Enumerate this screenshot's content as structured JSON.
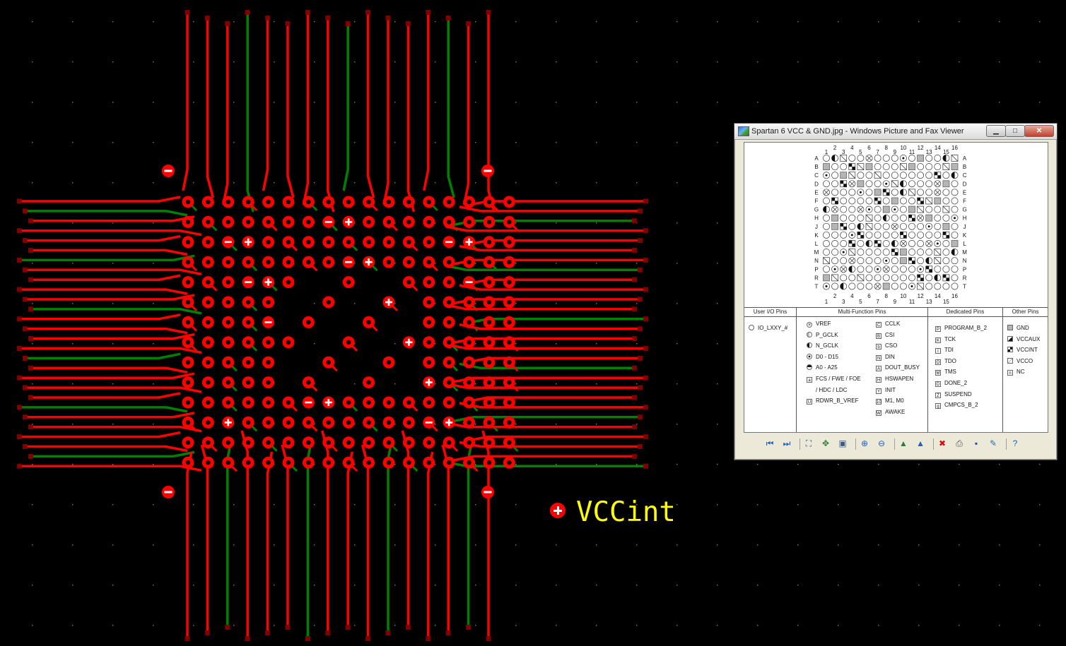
{
  "canvas": {
    "background": "#000000",
    "trace_red": "#ff0000",
    "trace_green": "#008000",
    "pad_dark": "#800000"
  },
  "net_label": {
    "text": "VCCint",
    "color": "#ffff00"
  },
  "viewer": {
    "title": "Spartan 6 VCC & GND.jpg - Windows Picture and Fax Viewer",
    "buttons": {
      "minimize": "▁",
      "maximize": "□",
      "close": "✕"
    },
    "pinout": {
      "cols_top_odd": [
        "1",
        "3",
        "5",
        "7",
        "9",
        "11",
        "13",
        "15"
      ],
      "cols_top_even": [
        "2",
        "4",
        "6",
        "8",
        "10",
        "12",
        "14",
        "16"
      ],
      "rows": [
        "A",
        "B",
        "C",
        "D",
        "E",
        "F",
        "G",
        "H",
        "J",
        "K",
        "L",
        "M",
        "N",
        "P",
        "R",
        "T"
      ]
    },
    "legend": {
      "user_io": {
        "header": "User I/O Pins",
        "items": [
          {
            "icon": "open-circle",
            "label": "IO_LXXY_#"
          }
        ]
      },
      "multi_function": {
        "header": "Multi-Function Pins",
        "col1": [
          {
            "icon": "crossed-circle",
            "label": "VREF"
          },
          {
            "icon": "half-circle",
            "label": "P_GCLK"
          },
          {
            "icon": "half-filled-circle",
            "label": "N_GCLK"
          },
          {
            "icon": "dot-circle",
            "label": "D0 - D15"
          },
          {
            "icon": "top-filled-circle",
            "label": "A0 - A25"
          },
          {
            "icon": "a-box",
            "label": "FCS / FWE / FOE"
          },
          {
            "icon": "",
            "label": "/ HDC / LDC"
          },
          {
            "icon": "U-box",
            "label": "RDWR_B_VREF"
          }
        ],
        "col2": [
          {
            "icon": "C-box",
            "label": "CCLK"
          },
          {
            "icon": "B-box",
            "label": "CSI"
          },
          {
            "icon": "b-box",
            "label": "CSO"
          },
          {
            "icon": "N-box",
            "label": "DIN"
          },
          {
            "icon": "A-box",
            "label": "DOUT_BUSY"
          },
          {
            "icon": "H-box",
            "label": "HSWAPEN"
          },
          {
            "icon": "Y-box",
            "label": "INIT"
          },
          {
            "icon": "10-box",
            "label": "M1, M0"
          },
          {
            "icon": "W-box",
            "label": "AWAKE"
          }
        ]
      },
      "dedicated": {
        "header": "Dedicated Pins",
        "items": [
          {
            "icon": "P-box",
            "label": "PROGRAM_B_2"
          },
          {
            "icon": "K-box",
            "label": "TCK"
          },
          {
            "icon": "I-box",
            "label": "TDI"
          },
          {
            "icon": "O-box",
            "label": "TDO"
          },
          {
            "icon": "M-box",
            "label": "TMS"
          },
          {
            "icon": "D-box",
            "label": "DONE_2"
          },
          {
            "icon": "Z-box",
            "label": "SUSPEND"
          },
          {
            "icon": "g-box",
            "label": "CMPCS_B_2"
          }
        ]
      },
      "other": {
        "header": "Other Pins",
        "items": [
          {
            "icon": "gray-box",
            "label": "GND"
          },
          {
            "icon": "diag-box",
            "label": "VCCAUX"
          },
          {
            "icon": "checker-box",
            "label": "VCCINT"
          },
          {
            "icon": "slash-box",
            "label": "VCCO"
          },
          {
            "icon": "n-box",
            "label": "NC"
          }
        ]
      }
    },
    "toolbar": [
      {
        "name": "previous-image-icon",
        "glyph": "⏮",
        "color": "#1f5fbf"
      },
      {
        "name": "next-image-icon",
        "glyph": "⏭",
        "color": "#1f5fbf"
      },
      {
        "sep": true
      },
      {
        "name": "best-fit-icon",
        "glyph": "⛶",
        "color": "#3a5a8a"
      },
      {
        "name": "actual-size-icon",
        "glyph": "✥",
        "color": "#2e7d32"
      },
      {
        "name": "slideshow-icon",
        "glyph": "▣",
        "color": "#3a5a8a"
      },
      {
        "sep": true
      },
      {
        "name": "zoom-in-icon",
        "glyph": "⊕",
        "color": "#2060c0"
      },
      {
        "name": "zoom-out-icon",
        "glyph": "⊖",
        "color": "#2060c0"
      },
      {
        "sep": true
      },
      {
        "name": "rotate-clockwise-icon",
        "glyph": "▲",
        "color": "#2e7d32"
      },
      {
        "name": "rotate-counterclockwise-icon",
        "glyph": "▲",
        "color": "#1f5fbf"
      },
      {
        "sep": true
      },
      {
        "name": "delete-icon",
        "glyph": "✖",
        "color": "#d01010"
      },
      {
        "name": "print-icon",
        "glyph": "⎙",
        "color": "#555555"
      },
      {
        "name": "save-icon",
        "glyph": "▪",
        "color": "#1f4fa0"
      },
      {
        "name": "edit-icon",
        "glyph": "✎",
        "color": "#2a6fb0"
      },
      {
        "sep": true
      },
      {
        "name": "help-icon",
        "glyph": "?",
        "color": "#1f5fbf"
      }
    ]
  }
}
